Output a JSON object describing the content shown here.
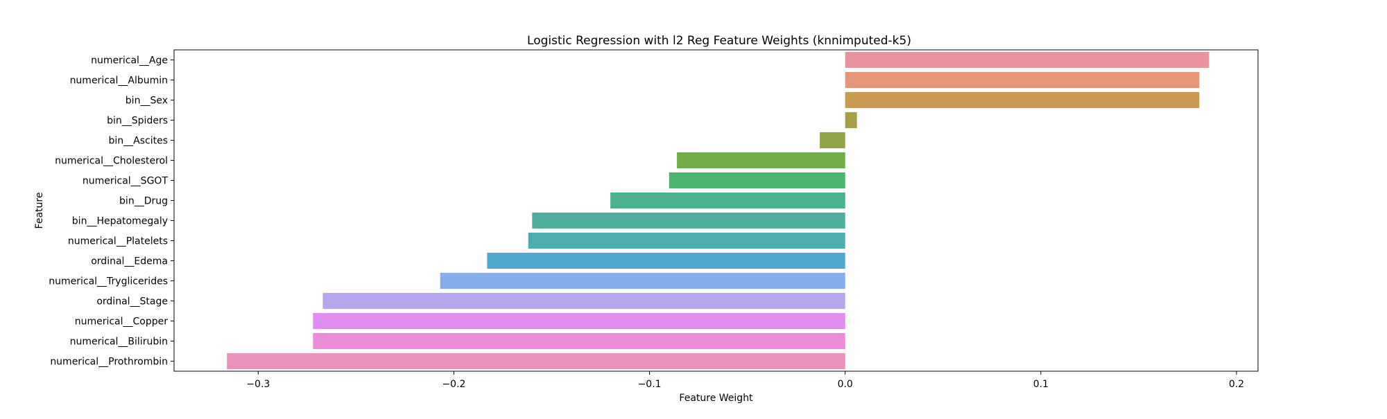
{
  "chart_data": {
    "type": "bar",
    "orientation": "horizontal",
    "title": "Logistic Regression with l2 Reg Feature Weights (knnimputed-k5)",
    "xlabel": "Feature Weight",
    "ylabel": "Feature",
    "xlim": [
      -0.343,
      0.211
    ],
    "xticks": [
      -0.3,
      -0.2,
      -0.1,
      0.0,
      0.1,
      0.2
    ],
    "xtick_labels": [
      "−0.3",
      "−0.2",
      "−0.1",
      "0.0",
      "0.1",
      "0.2"
    ],
    "grid": false,
    "legend": false,
    "categories": [
      "numerical__Age",
      "numerical__Albumin",
      "bin__Sex",
      "bin__Spiders",
      "bin__Ascites",
      "numerical__Cholesterol",
      "numerical__SGOT",
      "bin__Drug",
      "bin__Hepatomegaly",
      "numerical__Platelets",
      "ordinal__Edema",
      "numerical__Tryglicerides",
      "ordinal__Stage",
      "numerical__Copper",
      "numerical__Bilirubin",
      "numerical__Prothrombin"
    ],
    "values": [
      0.186,
      0.181,
      0.181,
      0.006,
      -0.013,
      -0.086,
      -0.09,
      -0.12,
      -0.16,
      -0.162,
      -0.183,
      -0.207,
      -0.267,
      -0.272,
      -0.272,
      -0.316
    ],
    "colors": [
      "#e8929e",
      "#e49677",
      "#c99a52",
      "#a99e48",
      "#92a44a",
      "#6fad47",
      "#4ab46e",
      "#4db08c",
      "#4dae9e",
      "#4eacb1",
      "#50a9cc",
      "#85aceb",
      "#b5a5ed",
      "#e08df0",
      "#e98cd9",
      "#ea92be"
    ]
  }
}
